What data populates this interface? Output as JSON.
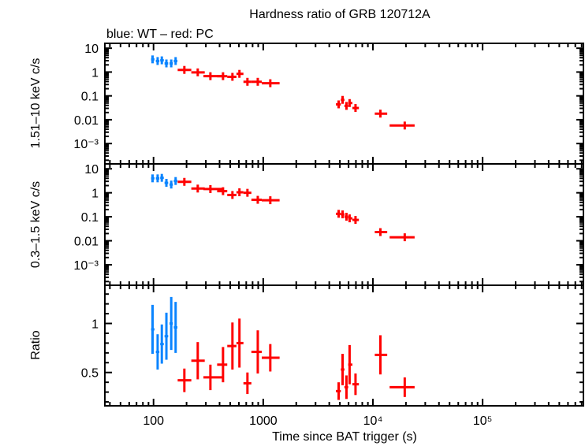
{
  "title": "Hardness ratio of GRB 120712A",
  "subtitle": "blue: WT – red: PC",
  "xlabel": "Time since BAT trigger (s)",
  "colors": {
    "WT": "#0a84ff",
    "PC": "#ff0000",
    "axis": "#000000"
  },
  "chart_data": [
    {
      "type": "scatter",
      "panel": "top",
      "ylabel": "1.51–10 keV c/s",
      "xscale": "log",
      "yscale": "log",
      "xlim": [
        36,
        830000
      ],
      "ylim": [
        0.00014,
        16
      ],
      "yticks": [
        {
          "v": 10,
          "label": "10"
        },
        {
          "v": 1,
          "label": "1"
        },
        {
          "v": 0.1,
          "label": "0.1"
        },
        {
          "v": 0.01,
          "label": "0.01"
        },
        {
          "v": 0.001,
          "label": "10⁻³"
        }
      ],
      "series": [
        {
          "mode": "WT",
          "x": [
            98,
            109,
            119,
            131,
            145,
            159
          ],
          "y": [
            3.4,
            2.9,
            3.1,
            2.3,
            2.3,
            2.9
          ]
        },
        {
          "mode": "PC",
          "x": [
            191,
            253,
            330,
            430,
            524,
            607,
            718,
            892,
            1160,
            4870,
            5290,
            5740,
            6130,
            6940,
            11700,
            19500
          ],
          "y": [
            1.23,
            0.97,
            0.67,
            0.67,
            0.63,
            0.84,
            0.39,
            0.39,
            0.34,
            0.044,
            0.068,
            0.038,
            0.05,
            0.031,
            0.018,
            0.0057
          ]
        }
      ]
    },
    {
      "type": "scatter",
      "panel": "middle",
      "ylabel": "0.3–1.5 keV c/s",
      "xscale": "log",
      "yscale": "log",
      "xlim": [
        36,
        830000
      ],
      "ylim": [
        0.00014,
        16
      ],
      "yticks": [
        {
          "v": 10,
          "label": "10"
        },
        {
          "v": 1,
          "label": "1"
        },
        {
          "v": 0.1,
          "label": "0.1"
        },
        {
          "v": 0.01,
          "label": "0.01"
        },
        {
          "v": 0.001,
          "label": "10⁻³"
        }
      ],
      "series": [
        {
          "mode": "WT",
          "x": [
            98,
            109,
            119,
            131,
            145,
            159
          ],
          "y": [
            4.0,
            4.0,
            4.2,
            2.6,
            2.2,
            3.1
          ]
        },
        {
          "mode": "PC",
          "x": [
            191,
            253,
            330,
            430,
            524,
            607,
            718,
            892,
            1160,
            4870,
            5290,
            5740,
            6130,
            6940,
            11700,
            19500
          ],
          "y": [
            2.86,
            1.5,
            1.43,
            1.17,
            0.81,
            1.05,
            1.0,
            0.51,
            0.49,
            0.133,
            0.126,
            0.1,
            0.086,
            0.074,
            0.023,
            0.014
          ]
        }
      ]
    },
    {
      "type": "scatter",
      "panel": "bottom",
      "ylabel": "Ratio",
      "xscale": "log",
      "yscale": "linear",
      "xlim": [
        36,
        830000
      ],
      "ylim": [
        0.16,
        1.39
      ],
      "yticks": [
        {
          "v": 1,
          "label": "1"
        },
        {
          "v": 0.5,
          "label": "0.5"
        }
      ],
      "xticks": [
        {
          "v": 100,
          "label": "100"
        },
        {
          "v": 1000,
          "label": "1000"
        },
        {
          "v": 10000,
          "label": "10⁴"
        },
        {
          "v": 100000,
          "label": "10⁵"
        }
      ],
      "series": [
        {
          "mode": "WT",
          "x": [
            98,
            109,
            119,
            131,
            145,
            159
          ],
          "y": [
            0.94,
            0.71,
            0.79,
            0.87,
            1.0,
            0.96
          ],
          "yerr": [
            0.25,
            0.18,
            0.2,
            0.24,
            0.27,
            0.26
          ]
        },
        {
          "mode": "PC",
          "x": [
            191,
            253,
            330,
            430,
            524,
            607,
            718,
            892,
            1160,
            4870,
            5290,
            5740,
            6130,
            6940,
            11700,
            19500
          ],
          "y": [
            0.42,
            0.62,
            0.45,
            0.58,
            0.77,
            0.8,
            0.39,
            0.71,
            0.65,
            0.31,
            0.53,
            0.35,
            0.58,
            0.38,
            0.68,
            0.35
          ],
          "yerr": [
            0.12,
            0.19,
            0.13,
            0.18,
            0.24,
            0.25,
            0.11,
            0.22,
            0.14,
            0.09,
            0.16,
            0.12,
            0.2,
            0.11,
            0.2,
            0.1
          ]
        }
      ]
    }
  ],
  "bins": {
    "WT": [
      [
        95,
        102
      ],
      [
        105,
        113
      ],
      [
        115,
        124
      ],
      [
        126,
        136
      ],
      [
        140,
        150
      ],
      [
        153,
        165
      ]
    ],
    "PC": [
      [
        166,
        221
      ],
      [
        221,
        293
      ],
      [
        285,
        430
      ],
      [
        380,
        470
      ],
      [
        470,
        570
      ],
      [
        570,
        660
      ],
      [
        660,
        780
      ],
      [
        780,
        970
      ],
      [
        970,
        1410
      ],
      [
        4600,
        5100
      ],
      [
        5100,
        5500
      ],
      [
        5500,
        5950
      ],
      [
        5950,
        6500
      ],
      [
        6500,
        7450
      ],
      [
        10400,
        13500
      ],
      [
        14200,
        24000
      ]
    ]
  }
}
